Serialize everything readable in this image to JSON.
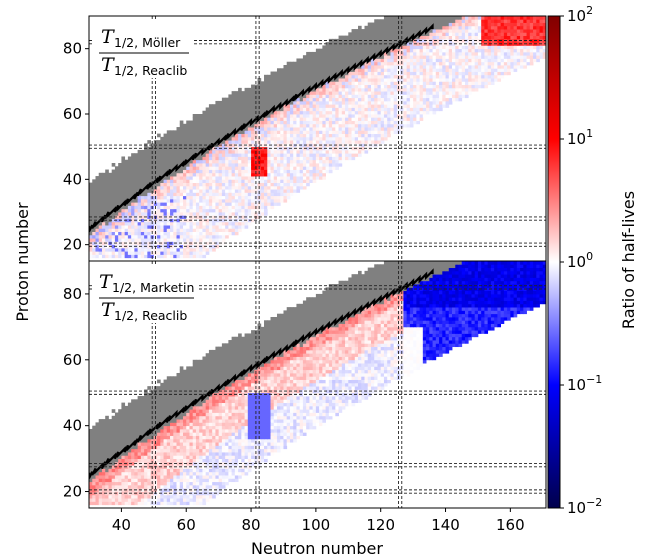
{
  "chart_data": {
    "type": "heatmap",
    "shared": {
      "xlabel": "Neutron number",
      "ylabel": "Proton number",
      "xlim": [
        30,
        171
      ],
      "x_ticks": [
        40,
        60,
        80,
        100,
        120,
        140,
        160
      ],
      "colorbar": {
        "label": "Ratio of half-lives",
        "scale": "log",
        "range": [
          0.01,
          100
        ],
        "ticks": [
          {
            "value": 100,
            "base": "10",
            "exp": "2"
          },
          {
            "value": 10,
            "base": "10",
            "exp": "1"
          },
          {
            "value": 1,
            "base": "10",
            "exp": "0"
          },
          {
            "value": 0.1,
            "base": "10",
            "exp": "−1"
          },
          {
            "value": 0.01,
            "base": "10",
            "exp": "−2"
          }
        ],
        "colormap": [
          "#00004c",
          "#0000ff",
          "#ffffff",
          "#ff0000",
          "#800000"
        ]
      },
      "magic_numbers": {
        "neutron": [
          50,
          82,
          126
        ],
        "proton": [
          20,
          28,
          50,
          82
        ]
      },
      "stable_color": "#808080",
      "stability_line_color": "#000000"
    },
    "panels": [
      {
        "name": "top",
        "ylim": [
          15,
          90
        ],
        "y_ticks": [
          20,
          40,
          60,
          80
        ],
        "label": {
          "T": "T",
          "sub_num": "1/2, Möller",
          "sub_den": "1/2, Reaclib"
        },
        "tendency": "mostly ratio ≈ 1 with weak red (>1) patches near stability and along the r-process region"
      },
      {
        "name": "bottom",
        "ylim": [
          15,
          90
        ],
        "y_ticks": [
          20,
          40,
          60,
          80
        ],
        "label": {
          "T": "T",
          "sub_num": "1/2, Marketin",
          "sub_den": "1/2, Reaclib"
        },
        "tendency": "ratio > 1 (red) for N < 126, strongly < 1 (blue, ~0.1) for N > 126"
      }
    ]
  }
}
